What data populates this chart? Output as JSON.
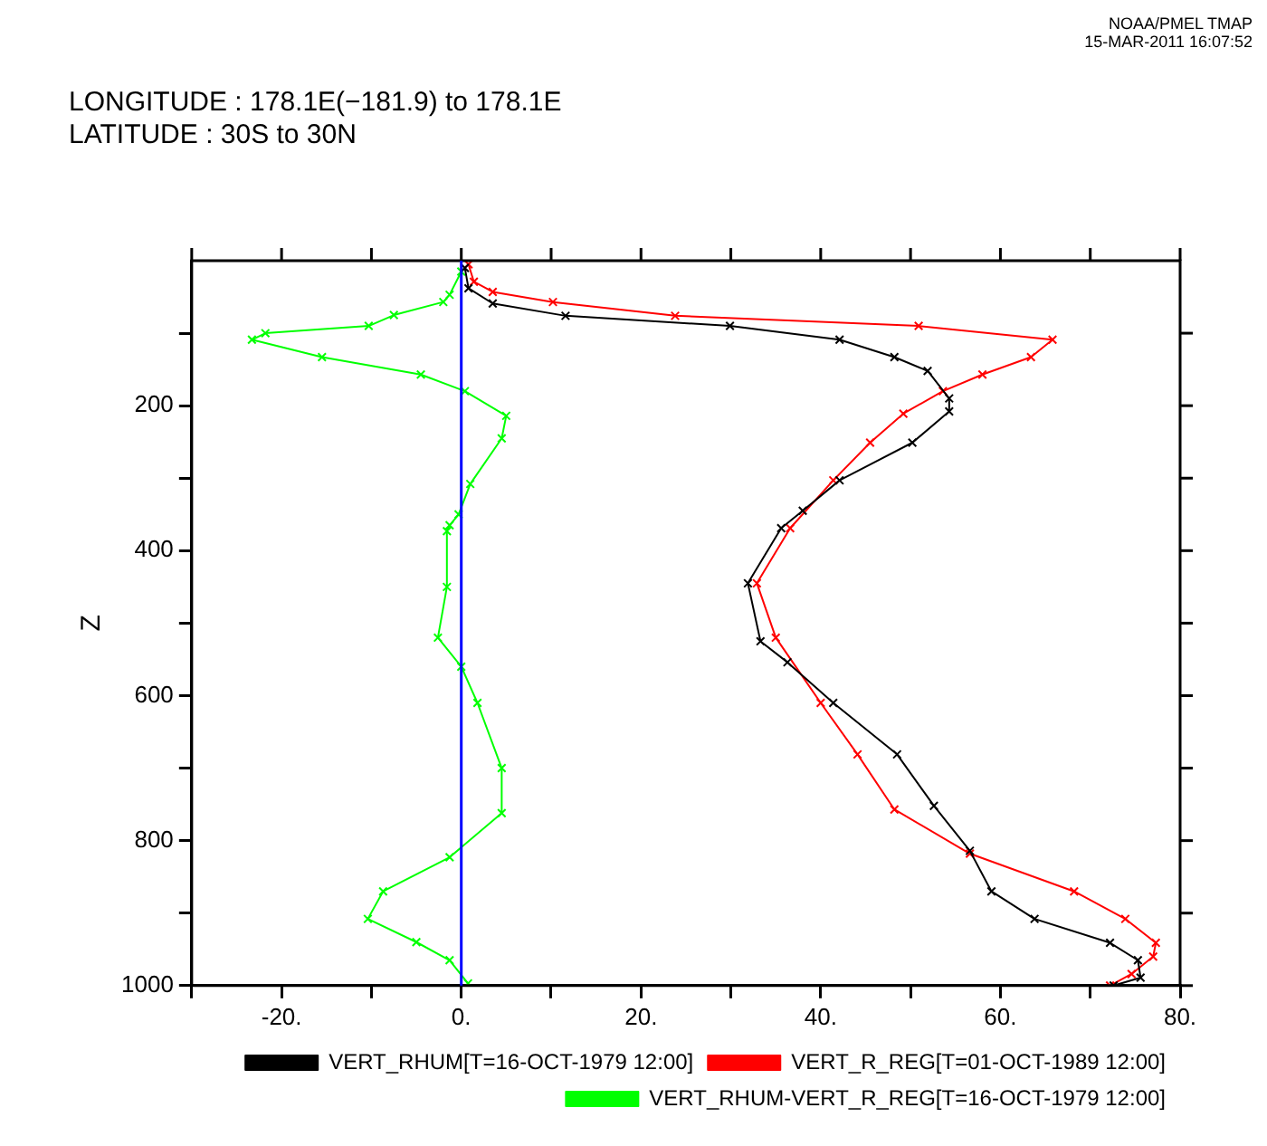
{
  "chart_data": {
    "type": "line",
    "title": "LONGITUDE : 178.1E(−181.9) to 178.1E",
    "subtitle": "LATITUDE : 30S to 30N",
    "ylabel": "Z",
    "annotations": [
      "NOAA/PMEL TMAP",
      "15-MAR-2011 16:07:52"
    ],
    "xlim": [
      -30,
      80
    ],
    "xticks": [
      {
        "value": -30,
        "label": null
      },
      {
        "value": -20,
        "label": "-20."
      },
      {
        "value": -10,
        "label": null
      },
      {
        "value": 0,
        "label": "0."
      },
      {
        "value": 10,
        "label": null
      },
      {
        "value": 20,
        "label": "20."
      },
      {
        "value": 30,
        "label": null
      },
      {
        "value": 40,
        "label": "40."
      },
      {
        "value": 50,
        "label": null
      },
      {
        "value": 60,
        "label": "60."
      },
      {
        "value": 70,
        "label": null
      },
      {
        "value": 80,
        "label": "80."
      }
    ],
    "ylim": [
      1000,
      0
    ],
    "yticks": [
      {
        "value": 100,
        "label": null
      },
      200,
      {
        "value": 300,
        "label": null
      },
      400,
      {
        "value": 500,
        "label": null
      },
      600,
      {
        "value": 700,
        "label": null
      },
      800,
      {
        "value": 900,
        "label": null
      },
      1000
    ],
    "grid": false,
    "legend": "bottom",
    "marker": "cross",
    "line_style": "solid",
    "ref_lines": [
      {
        "axis": "x",
        "value": 0,
        "color": "#0000ff"
      }
    ],
    "series": [
      {
        "name": "VERT_RHUM[T=16-OCT-1979 12:00]",
        "color": "#000000",
        "x": [
          0.4,
          0.8,
          3.5,
          11.6,
          29.9,
          42.1,
          48.2,
          51.9,
          54.3,
          54.3,
          50.2,
          42.1,
          38.0,
          35.6,
          31.9,
          33.3,
          36.3,
          41.4,
          48.5,
          52.6,
          56.6,
          59.0,
          63.8,
          72.2,
          75.3,
          75.6,
          72.6
        ],
        "values": [
          10,
          38,
          59,
          76,
          90,
          109,
          133,
          152,
          190,
          208,
          251,
          303,
          345,
          369,
          445,
          525,
          554,
          610,
          681,
          752,
          814,
          870,
          908,
          941,
          965,
          989,
          1000
        ]
      },
      {
        "name": "VERT_R_REG[T=01-OCT-1989 12:00]",
        "color": "#ff0000",
        "x": [
          0.8,
          1.4,
          3.5,
          10.2,
          23.8,
          50.9,
          65.8,
          63.4,
          58.0,
          53.6,
          49.2,
          45.5,
          41.4,
          36.6,
          32.9,
          35.0,
          40.0,
          44.1,
          48.2,
          56.6,
          68.2,
          73.9,
          77.3,
          77.0,
          74.6,
          72.2
        ],
        "values": [
          5,
          29,
          43,
          57,
          76,
          90,
          109,
          133,
          157,
          180,
          211,
          251,
          303,
          369,
          445,
          520,
          610,
          681,
          757,
          818,
          870,
          908,
          941,
          960,
          984,
          1000
        ]
      },
      {
        "name": "VERT_RHUM-VERT_R_REG[T=16-OCT-1979 12:00]",
        "color": "#00ff00",
        "x": [
          0.0,
          -1.3,
          -2.0,
          -7.5,
          -10.3,
          -21.8,
          -23.3,
          -15.5,
          -4.5,
          0.4,
          5.0,
          4.5,
          1.0,
          -0.3,
          -1.3,
          -1.6,
          -1.6,
          -2.6,
          0.0,
          1.8,
          4.5,
          4.5,
          -1.3,
          -8.7,
          -10.4,
          -5.0,
          -1.3,
          0.75
        ],
        "values": [
          15,
          47,
          57,
          75,
          90,
          100,
          109,
          133,
          157,
          180,
          214,
          245,
          308,
          350,
          365,
          373,
          450,
          520,
          560,
          610,
          700,
          762,
          823,
          870,
          908,
          940,
          965,
          997
        ]
      }
    ]
  }
}
